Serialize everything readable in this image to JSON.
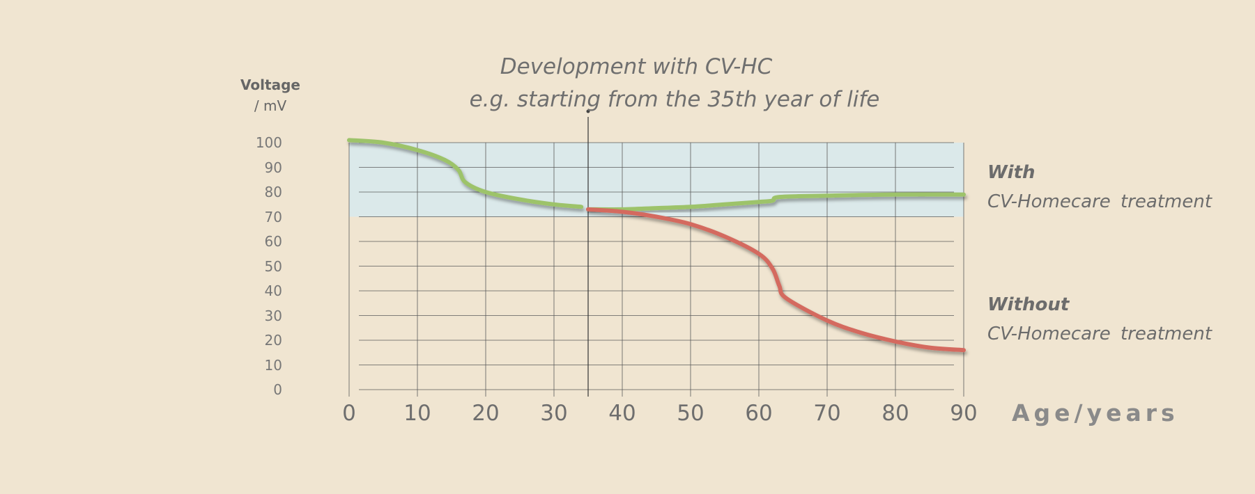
{
  "chart_data": {
    "type": "line",
    "title_line1": "Development with CV-HC",
    "title_line2": "e.g. starting from the 35th year of life",
    "ylabel": "Voltage",
    "ylabel_unit": "/ mV",
    "xlabel": "Age/years",
    "x_ticks": [
      "0",
      "10",
      "20",
      "30",
      "40",
      "50",
      "60",
      "70",
      "80",
      "90"
    ],
    "y_ticks": [
      "100",
      "90",
      "80",
      "70",
      "60",
      "50",
      "40",
      "30",
      "20",
      "10",
      "0"
    ],
    "xlim": [
      0,
      90
    ],
    "ylim": [
      0,
      100
    ],
    "grid": true,
    "highlight_band": {
      "y_from": 70,
      "y_to": 100,
      "color": "#dbe9ea"
    },
    "marker_line_x": 35,
    "legend_placement": "right",
    "series": [
      {
        "name": "With",
        "description": "CV-Homecare treatment",
        "color": "#9dc36b",
        "x": [
          0,
          5,
          10,
          14,
          16,
          17,
          20,
          25,
          30,
          34
        ],
        "y": [
          101,
          100,
          97,
          93,
          89,
          84,
          80,
          77,
          75,
          74
        ]
      },
      {
        "name": "With",
        "description": "CV-Homecare treatment",
        "color": "#9dc36b",
        "x": [
          35,
          40,
          45,
          50,
          55,
          60,
          62,
          63,
          70,
          80,
          90
        ],
        "y": [
          73,
          73,
          73.5,
          74,
          75,
          76,
          76.5,
          78,
          78.5,
          79,
          79
        ]
      },
      {
        "name": "Without",
        "description": "CV-Homecare treatment",
        "color": "#d46a5f",
        "x": [
          35,
          40,
          45,
          50,
          55,
          60,
          62,
          63,
          64,
          70,
          75,
          80,
          85,
          90
        ],
        "y": [
          73,
          72,
          70,
          67,
          62,
          55,
          49,
          42,
          37,
          28,
          23,
          19.5,
          17,
          16
        ]
      }
    ]
  }
}
